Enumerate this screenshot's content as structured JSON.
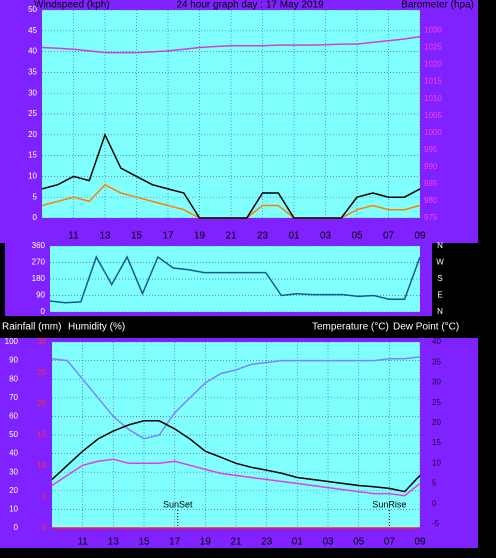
{
  "chart_data": [
    {
      "type": "line",
      "title": "24 hour graph day : 17 May 2019",
      "y_label": "Windspeed (kph)",
      "y2_label": "Barometer (hpa)",
      "x": [
        9,
        10,
        11,
        12,
        13,
        14,
        15,
        16,
        17,
        18,
        19,
        20,
        21,
        22,
        23,
        24,
        25,
        26,
        27,
        28,
        29,
        30,
        31,
        32,
        33
      ],
      "xlim": [
        9,
        33
      ],
      "xticks": [
        11,
        13,
        15,
        17,
        19,
        21,
        23,
        {
          "value": 25,
          "label": "01"
        },
        {
          "value": 27,
          "label": "03"
        },
        {
          "value": 29,
          "label": "05"
        },
        {
          "value": 31,
          "label": "07"
        },
        {
          "value": 33,
          "label": "09"
        }
      ],
      "ylim": [
        0,
        50
      ],
      "yticks": [
        0,
        5,
        10,
        15,
        20,
        25,
        30,
        35,
        40,
        45,
        50
      ],
      "y2lim": [
        975,
        1036
      ],
      "y2ticks": [
        975,
        980,
        985,
        990,
        995,
        1000,
        1005,
        1010,
        1015,
        1020,
        1025,
        1030
      ],
      "grid": true,
      "series": [
        {
          "color": "#ff8000",
          "values": [
            3,
            4,
            5,
            4,
            8,
            6,
            5,
            4,
            3,
            2,
            0,
            0,
            0,
            0,
            3,
            3,
            0,
            0,
            0,
            0,
            2,
            3,
            2,
            2,
            3
          ]
        },
        {
          "color": "#000000",
          "values": [
            7,
            8,
            10,
            9,
            20,
            12,
            10,
            8,
            7,
            6,
            0,
            0,
            0,
            0,
            6,
            6,
            0,
            0,
            0,
            0,
            5,
            6,
            5,
            5,
            7
          ]
        },
        {
          "color": "#d040d0",
          "axis": "y2",
          "values": [
            1025,
            1024.8,
            1024.5,
            1024,
            1023.5,
            1023.5,
            1023.5,
            1023.7,
            1024,
            1024.5,
            1025,
            1025.3,
            1025.5,
            1025.5,
            1025.5,
            1025.7,
            1025.7,
            1025.7,
            1025.8,
            1026,
            1026,
            1026.5,
            1027,
            1027.5,
            1028.2
          ]
        }
      ]
    },
    {
      "type": "line",
      "x": [
        9,
        10,
        11,
        12,
        13,
        14,
        15,
        16,
        17,
        18,
        19,
        20,
        21,
        22,
        23,
        24,
        25,
        26,
        27,
        28,
        29,
        30,
        31,
        32,
        33
      ],
      "xlim": [
        9,
        33
      ],
      "ylim": [
        0,
        360
      ],
      "yticks": [
        0,
        90,
        180,
        270,
        360
      ],
      "y2lim": [
        0,
        360
      ],
      "y2ticks": [
        {
          "value": 360,
          "label": "N"
        },
        {
          "value": 270,
          "label": "W"
        },
        {
          "value": 180,
          "label": "S"
        },
        {
          "value": 90,
          "label": "E"
        },
        {
          "value": 0,
          "label": "N"
        }
      ],
      "grid": true,
      "series": [
        {
          "color": "#1a5a8a",
          "values": [
            60,
            50,
            55,
            300,
            150,
            300,
            100,
            300,
            240,
            230,
            215,
            215,
            215,
            215,
            215,
            90,
            100,
            95,
            95,
            95,
            85,
            90,
            70,
            70,
            300
          ]
        }
      ]
    },
    {
      "type": "line",
      "x": [
        9,
        10,
        11,
        12,
        13,
        14,
        15,
        16,
        17,
        18,
        19,
        20,
        21,
        22,
        23,
        24,
        25,
        26,
        27,
        28,
        29,
        30,
        31,
        32,
        33
      ],
      "xlim": [
        9,
        33
      ],
      "xticks": [
        11,
        13,
        15,
        17,
        19,
        21,
        23,
        {
          "value": 25,
          "label": "01"
        },
        {
          "value": 27,
          "label": "03"
        },
        {
          "value": 29,
          "label": "05"
        },
        {
          "value": 31,
          "label": "07"
        },
        {
          "value": 33,
          "label": "09"
        }
      ],
      "ylim": [
        0,
        100
      ],
      "yticks": [
        0,
        10,
        20,
        30,
        40,
        50,
        60,
        70,
        80,
        90,
        100
      ],
      "y2lim": [
        -6,
        40
      ],
      "y2ticks": [
        -5,
        0,
        5,
        10,
        15,
        20,
        25,
        30,
        35,
        40
      ],
      "y3lim": [
        0,
        30
      ],
      "y3ticks": [
        0,
        5,
        10,
        15,
        20,
        25,
        30
      ],
      "grid": true,
      "series": [
        {
          "name": "Rainfall (mm)",
          "color": "#ff2020",
          "axis": "y3",
          "values": [
            0,
            0,
            0,
            0,
            0,
            0,
            0,
            0,
            0,
            0,
            0,
            0,
            0,
            0,
            0,
            0,
            0,
            0,
            0,
            0,
            0,
            0,
            0,
            0,
            0
          ]
        },
        {
          "name": "Humidity (%)",
          "color": "#8080ff",
          "values": [
            91,
            90,
            80,
            70,
            60,
            53,
            48,
            50,
            62,
            70,
            78,
            83,
            85,
            88,
            89,
            90,
            90,
            90,
            90,
            90,
            90,
            90,
            91,
            91,
            92
          ]
        },
        {
          "name": "Temperature (°C)",
          "color": "#000000",
          "axis": "y2",
          "values": [
            6,
            9.5,
            13,
            16,
            18,
            19.5,
            20.5,
            20.5,
            18.5,
            16,
            13,
            11.5,
            10,
            9,
            8.3,
            7.5,
            6.5,
            6,
            5.5,
            5,
            4.5,
            4.2,
            3.8,
            3,
            7
          ]
        },
        {
          "name": "Dew Point (°C)",
          "color": "#e040e0",
          "axis": "y2",
          "values": [
            4.5,
            7,
            9.5,
            10.5,
            11,
            10,
            10,
            10,
            10.5,
            9.5,
            8.5,
            7.5,
            7,
            6.5,
            6,
            5.5,
            5,
            4.5,
            4,
            3.5,
            3,
            2.5,
            2.5,
            2,
            5
          ]
        }
      ],
      "annotations": [
        {
          "text": "SunSet",
          "x": 17.2
        },
        {
          "text": "SunRise",
          "x": 31.0
        }
      ]
    }
  ]
}
